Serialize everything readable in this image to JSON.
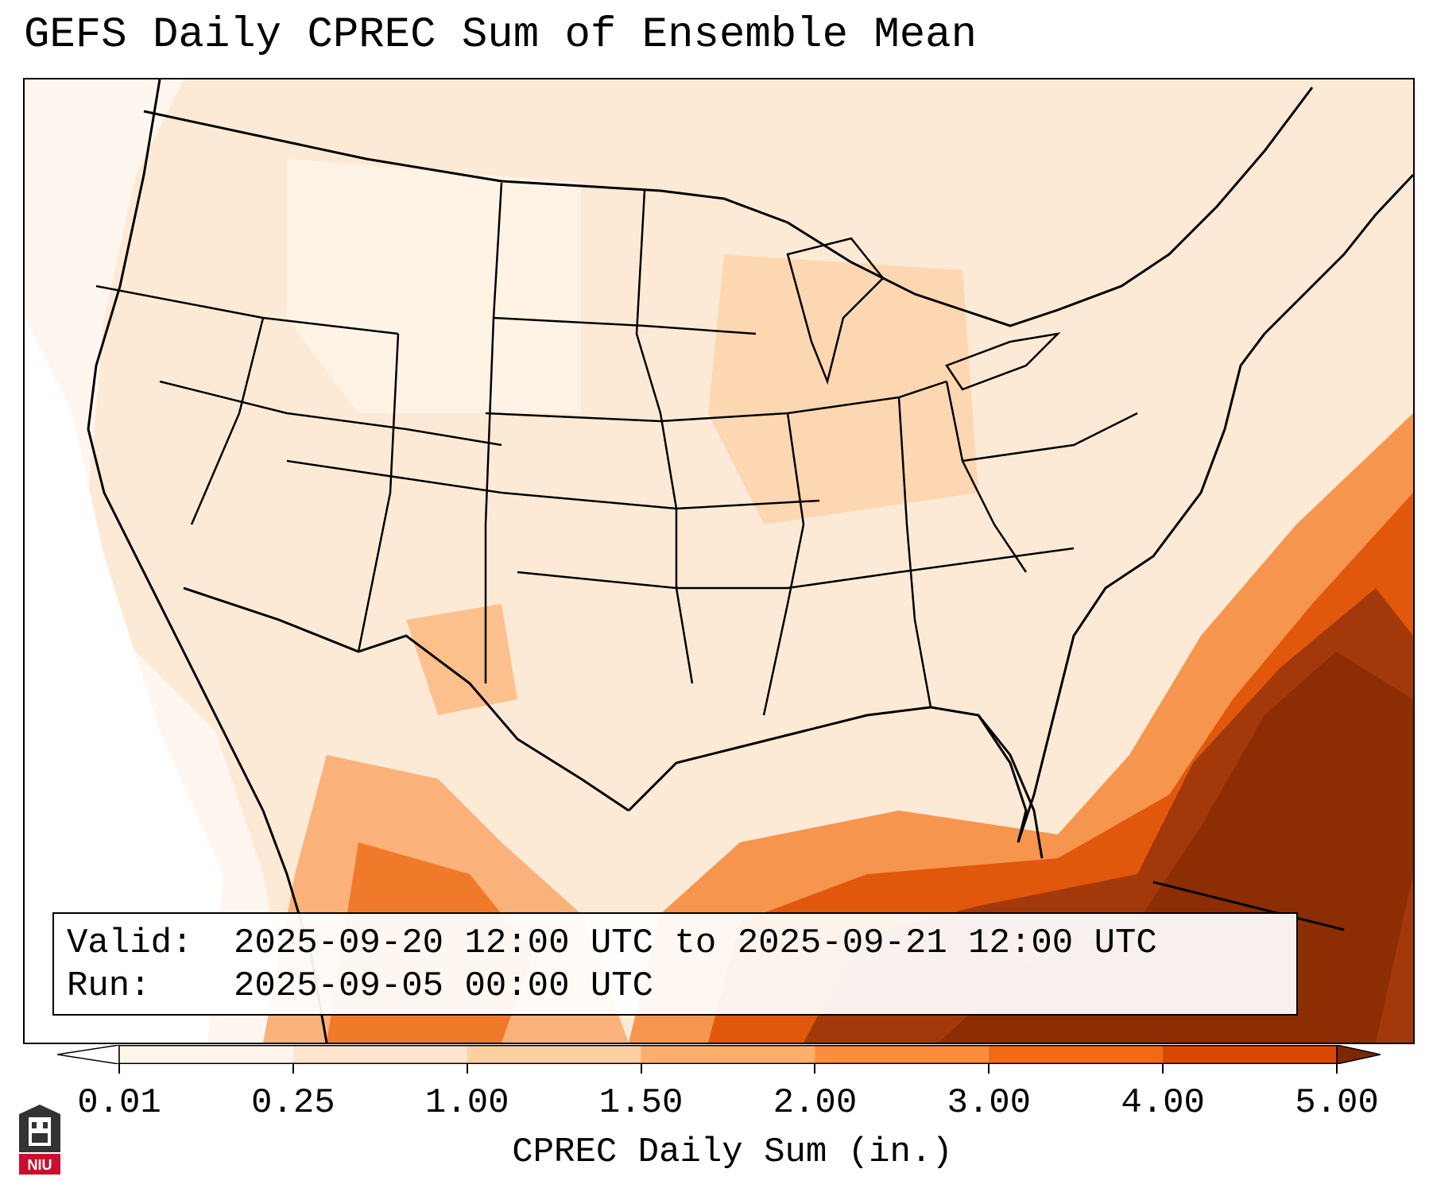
{
  "title": "GEFS Daily CPREC Sum of Ensemble Mean",
  "info": {
    "valid_key": "Valid:",
    "valid_value": "2025-09-20 12:00 UTC to 2025-09-21 12:00 UTC",
    "run_key": "Run:",
    "run_value": "2025-09-05 00:00 UTC"
  },
  "colorbar": {
    "label": "CPREC Daily Sum (in.)",
    "ticks": [
      "0.01",
      "0.25",
      "1.00",
      "1.50",
      "2.00",
      "3.00",
      "4.00",
      "5.00"
    ],
    "colors": [
      "#fff5eb",
      "#fee6ce",
      "#fdd0a2",
      "#fdae6b",
      "#fd8d3c",
      "#f16913",
      "#d94801",
      "#8c2d04"
    ],
    "under_color": "#ffffff",
    "over_color": "#7f2704"
  },
  "logo": {
    "text": "NIU",
    "color": "#c8102e"
  }
}
